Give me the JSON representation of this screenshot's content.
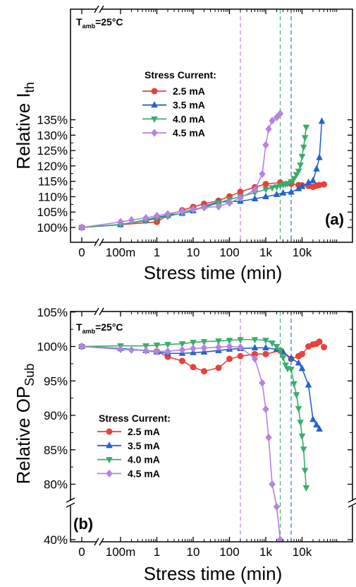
{
  "chart_data": [
    {
      "type": "line",
      "panel_label": "(a)",
      "annotation_base": "T",
      "annotation_sub": "amb",
      "annotation_value": "=25°C",
      "ylabel": "Relative I",
      "ylabel_sub": "th",
      "xlabel": "Stress time (min)",
      "x_ticks": [
        "0",
        "100m",
        "1",
        "10",
        "100",
        "1k",
        "10k"
      ],
      "y_ticks": [
        "100%",
        "105%",
        "110%",
        "115%",
        "120%",
        "125%",
        "130%",
        "135%"
      ],
      "ylim": [
        99,
        135
      ],
      "x_scale": "log with broken zero point",
      "legend_title": "Stress Current:",
      "legend_position": "center-left",
      "vlines_min": [
        200,
        2500,
        5000
      ],
      "series": [
        {
          "name": "2.5 mA",
          "color": "#e8413a",
          "marker": "circle",
          "x": [
            0,
            1,
            2,
            5,
            10,
            20,
            50,
            100,
            200,
            500,
            1000,
            2500,
            5000,
            8000,
            10000,
            15000,
            20000,
            25000,
            30000,
            40000
          ],
          "y": [
            100,
            101.8,
            104,
            105.6,
            106.7,
            107.7,
            108.7,
            110.1,
            111.6,
            113.1,
            114.1,
            114.6,
            114.2,
            113.8,
            113.7,
            113.5,
            113.2,
            113.6,
            113.8,
            114
          ]
        },
        {
          "name": "3.5 mA",
          "color": "#2563c9",
          "marker": "triangle-up",
          "x": [
            0,
            0.1,
            0.5,
            1,
            2,
            5,
            10,
            20,
            50,
            100,
            200,
            500,
            1000,
            2000,
            3000,
            5000,
            8000,
            10000,
            15000,
            20000,
            25000,
            30000,
            35000
          ],
          "y": [
            100,
            100.9,
            102.4,
            103.3,
            103.9,
            104.6,
            105.4,
            106.9,
            108.3,
            108.4,
            108.5,
            109.3,
            110.0,
            110.7,
            111.2,
            111.5,
            112.6,
            113.3,
            114.6,
            115.2,
            119.0,
            122.7,
            134.5
          ]
        },
        {
          "name": "4.0 mA",
          "color": "#3aad68",
          "marker": "triangle-down",
          "x": [
            0,
            0.1,
            0.5,
            1,
            2,
            5,
            10,
            20,
            50,
            100,
            200,
            500,
            1000,
            1500,
            2000,
            2500,
            3000,
            3500,
            4000,
            5000,
            6000,
            7000,
            8000,
            9000,
            10000,
            11000,
            12000,
            13000
          ],
          "y": [
            100,
            101.0,
            102.2,
            102.9,
            103.6,
            104.7,
            105.6,
            106.5,
            108.0,
            109.1,
            110.0,
            111.3,
            112.4,
            112.9,
            113.2,
            113.6,
            113.9,
            114.1,
            114.3,
            114.9,
            115.9,
            117.2,
            118.3,
            120.3,
            123.1,
            126.1,
            129.2,
            132.6
          ]
        },
        {
          "name": "4.5 mA",
          "color": "#b583e0",
          "marker": "diamond",
          "x": [
            0,
            0.1,
            0.2,
            0.5,
            1,
            2,
            5,
            10,
            20,
            50,
            100,
            200,
            500,
            800,
            1000,
            1200,
            1500,
            2000,
            2500
          ],
          "y": [
            100,
            101.8,
            102.4,
            103.1,
            103.8,
            104.4,
            105.3,
            105.9,
            106.5,
            106.8,
            108.0,
            109.6,
            112.2,
            117.4,
            126.8,
            132,
            134.7,
            135.8,
            137
          ]
        }
      ]
    },
    {
      "type": "line",
      "panel_label": "(b)",
      "annotation_base": "T",
      "annotation_sub": "amb",
      "annotation_value": "=25°C",
      "ylabel": "Relative OP",
      "ylabel_sub": "Sub",
      "xlabel": "Stress time (min)",
      "x_ticks": [
        "0",
        "100m",
        "1",
        "10",
        "100",
        "1k",
        "10k"
      ],
      "y_ticks": [
        "40%",
        "80%",
        "85%",
        "90%",
        "95%",
        "100%",
        "105%"
      ],
      "ylim": [
        78,
        105
      ],
      "y_break": "between 78% and 40%",
      "x_scale": "log with broken zero point",
      "legend_title": "Stress Current:",
      "legend_position": "bottom-left",
      "vlines_min": [
        200,
        2500,
        5000
      ],
      "series": [
        {
          "name": "2.5 mA",
          "color": "#e8413a",
          "marker": "circle",
          "x": [
            0,
            1,
            2,
            5,
            10,
            20,
            50,
            100,
            200,
            500,
            1000,
            2500,
            5000,
            8000,
            10000,
            15000,
            20000,
            25000,
            30000,
            40000
          ],
          "y": [
            100,
            99.3,
            98.5,
            97.9,
            97.0,
            96.4,
            96.9,
            98.2,
            98.6,
            98.9,
            98.9,
            99.4,
            98.2,
            98.6,
            98.9,
            100.0,
            100.3,
            100.4,
            100.7,
            99.9
          ]
        },
        {
          "name": "3.5 mA",
          "color": "#2563c9",
          "marker": "triangle-up",
          "x": [
            0,
            0.1,
            0.5,
            1,
            2,
            5,
            10,
            20,
            50,
            100,
            200,
            500,
            1000,
            2000,
            3000,
            5000,
            8000,
            10000,
            15000,
            20000,
            25000,
            30000
          ],
          "y": [
            100,
            99.7,
            99.4,
            99.2,
            99.0,
            99.0,
            99.1,
            99.2,
            99.4,
            99.6,
            99.7,
            99.8,
            99.8,
            99.6,
            99.2,
            98.3,
            97.6,
            96.8,
            94.4,
            89.4,
            88.6,
            88.0
          ]
        },
        {
          "name": "4.0 mA",
          "color": "#3aad68",
          "marker": "triangle-down",
          "x": [
            0,
            0.1,
            0.5,
            1,
            2,
            5,
            10,
            20,
            50,
            100,
            200,
            500,
            1000,
            1500,
            2000,
            2500,
            3000,
            3500,
            4000,
            5000,
            6000,
            7000,
            8000,
            9000,
            10000,
            11000,
            12000,
            13000
          ],
          "y": [
            100,
            100.1,
            100.1,
            100.2,
            100.3,
            100.4,
            100.6,
            100.7,
            100.8,
            100.9,
            101.0,
            101.0,
            100.9,
            100.5,
            100.0,
            99.4,
            98.4,
            97.3,
            96.8,
            96.7,
            94.6,
            93.0,
            91.0,
            89.0,
            87.0,
            85.1,
            82.0,
            79.5
          ]
        },
        {
          "name": "4.5 mA",
          "color": "#b583e0",
          "marker": "diamond",
          "x": [
            0,
            0.1,
            0.2,
            0.5,
            1,
            2,
            5,
            10,
            20,
            50,
            100,
            200,
            500,
            800,
            1000,
            1200,
            1500,
            2000,
            2500
          ],
          "y": [
            100,
            99.6,
            99.5,
            99.4,
            99.3,
            99.3,
            99.5,
            99.7,
            99.8,
            99.9,
            100.0,
            99.9,
            98.2,
            94.7,
            90.9,
            86.8,
            80.0,
            70.0,
            40.0
          ]
        }
      ]
    }
  ]
}
